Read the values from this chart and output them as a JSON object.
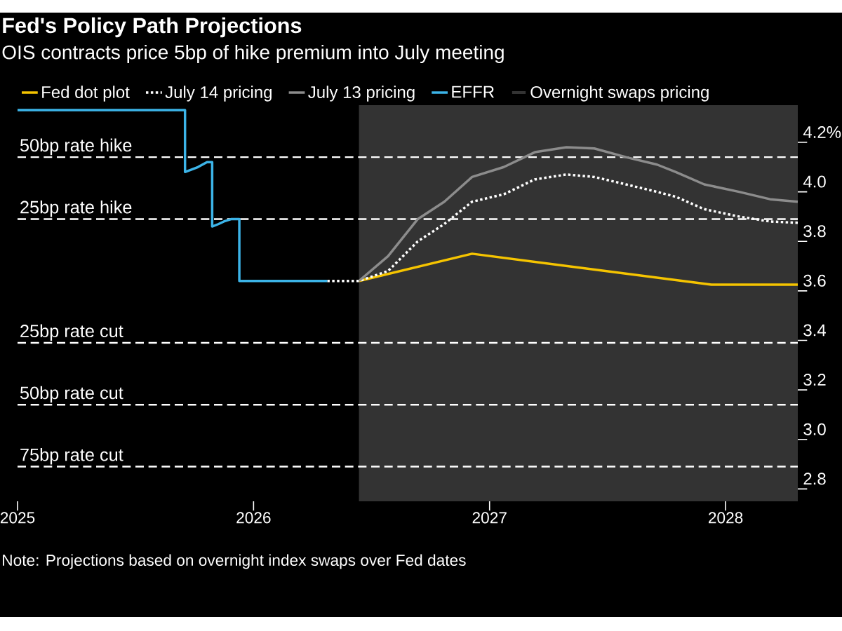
{
  "chart_data": {
    "type": "line",
    "title": "Fed's Policy Path Projections",
    "subtitle": "OIS contracts price 5bp of hike premium into July meeting",
    "series": [
      {
        "name": "Fed dot plot",
        "color": "#f5c400",
        "line_style": "solid",
        "x": [
          "2026-06-13",
          "2026-12-05",
          "2027-12-10",
          "2028-04-22"
        ],
        "values": [
          3.64,
          3.75,
          3.625,
          3.625
        ]
      },
      {
        "name": "July 14 pricing",
        "color": "#ffffff",
        "line_style": "dotted",
        "x": [
          "2026-04-25",
          "2026-06-13",
          "2026-07-28",
          "2026-09-12",
          "2026-10-23",
          "2026-12-05",
          "2027-01-23",
          "2027-03-12",
          "2027-04-30",
          "2027-06-12",
          "2027-07-31",
          "2027-09-17",
          "2027-10-16",
          "2027-11-29",
          "2028-01-22",
          "2028-03-10",
          "2028-04-22"
        ],
        "values": [
          3.64,
          3.64,
          3.68,
          3.8,
          3.87,
          3.96,
          3.99,
          4.05,
          4.07,
          4.06,
          4.03,
          4.0,
          3.98,
          3.93,
          3.9,
          3.88,
          3.875
        ]
      },
      {
        "name": "July 13 pricing",
        "color": "#8c8c8c",
        "line_style": "solid",
        "x": [
          "2026-06-13",
          "2026-07-28",
          "2026-09-12",
          "2026-10-23",
          "2026-12-05",
          "2027-01-23",
          "2027-03-12",
          "2027-04-30",
          "2027-06-12",
          "2027-07-31",
          "2027-09-17",
          "2027-10-16",
          "2027-11-29",
          "2028-01-22",
          "2028-03-10",
          "2028-04-22"
        ],
        "values": [
          3.64,
          3.74,
          3.89,
          3.96,
          4.06,
          4.1,
          4.16,
          4.18,
          4.175,
          4.14,
          4.11,
          4.08,
          4.03,
          4.0,
          3.97,
          3.96
        ]
      },
      {
        "name": "EFFR",
        "color": "#3cb4e8",
        "line_style": "solid",
        "x": [
          "2025-01-01",
          "2025-09-17",
          "2025-09-17",
          "2025-10-07",
          "2025-10-14",
          "2025-10-21",
          "2025-10-29",
          "2025-10-29",
          "2025-11-08",
          "2025-11-16",
          "2025-11-28",
          "2025-12-10",
          "2025-12-10",
          "2026-04-25"
        ],
        "values": [
          4.33,
          4.33,
          4.08,
          4.1,
          4.11,
          4.12,
          4.12,
          3.86,
          3.87,
          3.88,
          3.89,
          3.89,
          3.64,
          3.64
        ]
      }
    ],
    "xlim": [
      "2025-01-01",
      "2028-04-22"
    ],
    "xticks": [
      "2025",
      "2026",
      "2027",
      "2028"
    ],
    "ylim": [
      2.75,
      4.35
    ],
    "yticks": [
      {
        "value": 2.8,
        "label": "2.8"
      },
      {
        "value": 3,
        "label": "3.0"
      },
      {
        "value": 3.2,
        "label": "3.2"
      },
      {
        "value": 3.4,
        "label": "3.4"
      },
      {
        "value": 3.6,
        "label": "3.6"
      },
      {
        "value": 3.8,
        "label": "3.8"
      },
      {
        "value": 4,
        "label": "4.0"
      },
      {
        "value": 4.2,
        "label": "4.2%"
      }
    ],
    "ref_lines": [
      {
        "axis": "y",
        "value": 4.14,
        "label": "50bp rate hike",
        "color": "#ffffff",
        "line_style": "dashed"
      },
      {
        "axis": "y",
        "value": 3.89,
        "label": "25bp rate hike",
        "color": "#ffffff",
        "line_style": "dashed"
      },
      {
        "axis": "y",
        "value": 3.39,
        "label": "25bp rate cut",
        "color": "#ffffff",
        "line_style": "dashed"
      },
      {
        "axis": "y",
        "value": 3.14,
        "label": "50bp rate cut",
        "color": "#ffffff",
        "line_style": "dashed"
      },
      {
        "axis": "y",
        "value": 2.89,
        "label": "75bp rate cut",
        "color": "#ffffff",
        "line_style": "dashed"
      }
    ],
    "bands": [
      {
        "axis": "x",
        "from": "2026-06-13",
        "to": "2028-04-22",
        "label": "Overnight swaps pricing",
        "color": "#333333"
      }
    ],
    "legend": "top",
    "grid": false,
    "marker": "none",
    "annotations": [
      "Note: Projections based on overnight index swaps over Fed dates"
    ]
  }
}
